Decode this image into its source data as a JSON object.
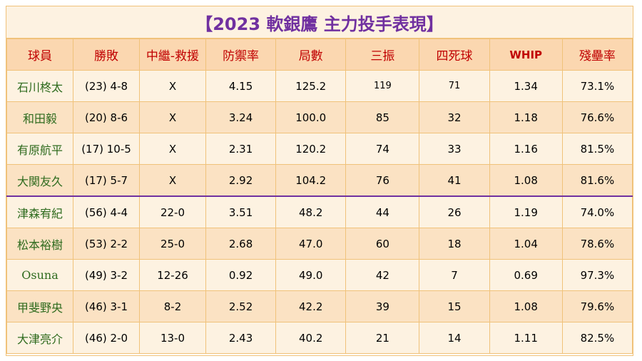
{
  "title": "【2023 軟銀鷹 主力投手表現】",
  "headers": {
    "player": "球員",
    "record": "勝敗",
    "hold_save": "中繼-救援",
    "era": "防禦率",
    "innings": "局數",
    "strikeouts": "三振",
    "walks": "四死球",
    "whip": "WHIP",
    "lob": "殘壘率"
  },
  "rows": [
    {
      "player": "石川柊太",
      "record": "(23) 4-8",
      "hold_save": "X",
      "era": "4.15",
      "innings": "125.2",
      "strikeouts": "119",
      "walks": "71",
      "whip": "1.34",
      "lob": "73.1%"
    },
    {
      "player": "和田毅",
      "record": "(20) 8-6",
      "hold_save": "X",
      "era": "3.24",
      "innings": "100.0",
      "strikeouts": "85",
      "walks": "32",
      "whip": "1.18",
      "lob": "76.6%"
    },
    {
      "player": "有原航平",
      "record": "(17) 10-5",
      "hold_save": "X",
      "era": "2.31",
      "innings": "120.2",
      "strikeouts": "74",
      "walks": "33",
      "whip": "1.16",
      "lob": "81.5%"
    },
    {
      "player": "大関友久",
      "record": "(17) 5-7",
      "hold_save": "X",
      "era": "2.92",
      "innings": "104.2",
      "strikeouts": "76",
      "walks": "41",
      "whip": "1.08",
      "lob": "81.6%"
    },
    {
      "player": "津森宥紀",
      "record": "(56) 4-4",
      "hold_save": "22-0",
      "era": "3.51",
      "innings": "48.2",
      "strikeouts": "44",
      "walks": "26",
      "whip": "1.19",
      "lob": "74.0%"
    },
    {
      "player": "松本裕樹",
      "record": "(53) 2-2",
      "hold_save": "25-0",
      "era": "2.68",
      "innings": "47.0",
      "strikeouts": "60",
      "walks": "18",
      "whip": "1.04",
      "lob": "78.6%"
    },
    {
      "player": "Osuna",
      "record": "(49) 3-2",
      "hold_save": "12-26",
      "era": "0.92",
      "innings": "49.0",
      "strikeouts": "42",
      "walks": "7",
      "whip": "0.69",
      "lob": "97.3%"
    },
    {
      "player": "甲斐野央",
      "record": "(46) 3-1",
      "hold_save": "8-2",
      "era": "2.52",
      "innings": "42.2",
      "strikeouts": "39",
      "walks": "15",
      "whip": "1.08",
      "lob": "79.6%"
    },
    {
      "player": "大津亮介",
      "record": "(46) 2-0",
      "hold_save": "13-0",
      "era": "2.43",
      "innings": "40.2",
      "strikeouts": "21",
      "walks": "14",
      "whip": "1.11",
      "lob": "82.5%"
    }
  ],
  "colors": {
    "title": "#7030a0",
    "header_text": "#c00000",
    "player_name": "#2e6b1e",
    "border": "#f0c27a",
    "separator": "#7030a0"
  }
}
